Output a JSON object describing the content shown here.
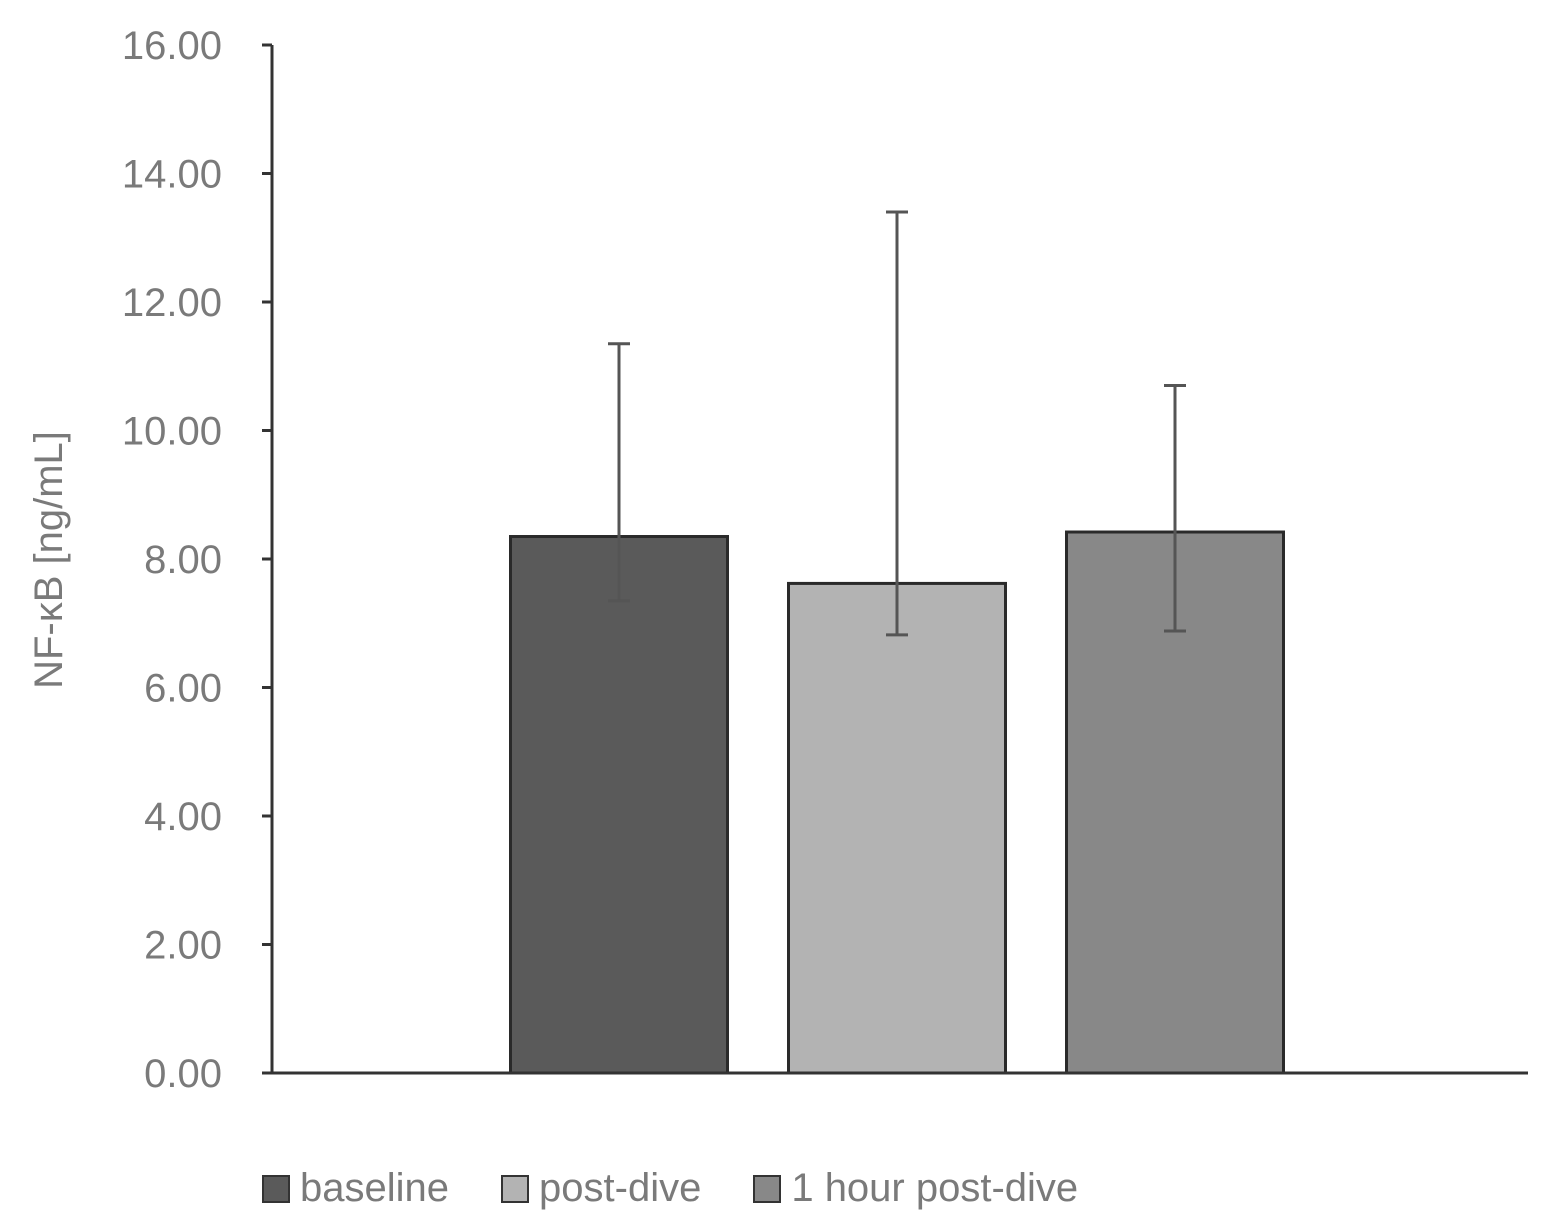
{
  "chart_data": {
    "type": "bar",
    "categories": [
      "baseline",
      "post-dive",
      "1 hour post-dive"
    ],
    "series": [
      {
        "values": [
          8.35,
          7.62,
          8.42
        ],
        "error_upper": [
          11.35,
          13.4,
          10.7
        ],
        "error_lower": [
          7.35,
          6.82,
          6.88
        ],
        "colors": [
          "#5a5a5a",
          "#b3b3b3",
          "#888888"
        ]
      }
    ],
    "ylabel": "NF-κB [ng/mL]",
    "xlabel": "",
    "ylim": [
      0,
      16
    ],
    "yticks": [
      "0.00",
      "2.00",
      "4.00",
      "6.00",
      "8.00",
      "10.00",
      "12.00",
      "14.00",
      "16.00"
    ],
    "grid": false,
    "legend": {
      "position": "bottom",
      "entries": [
        "baseline",
        "post-dive",
        "1 hour post-dive"
      ]
    }
  }
}
